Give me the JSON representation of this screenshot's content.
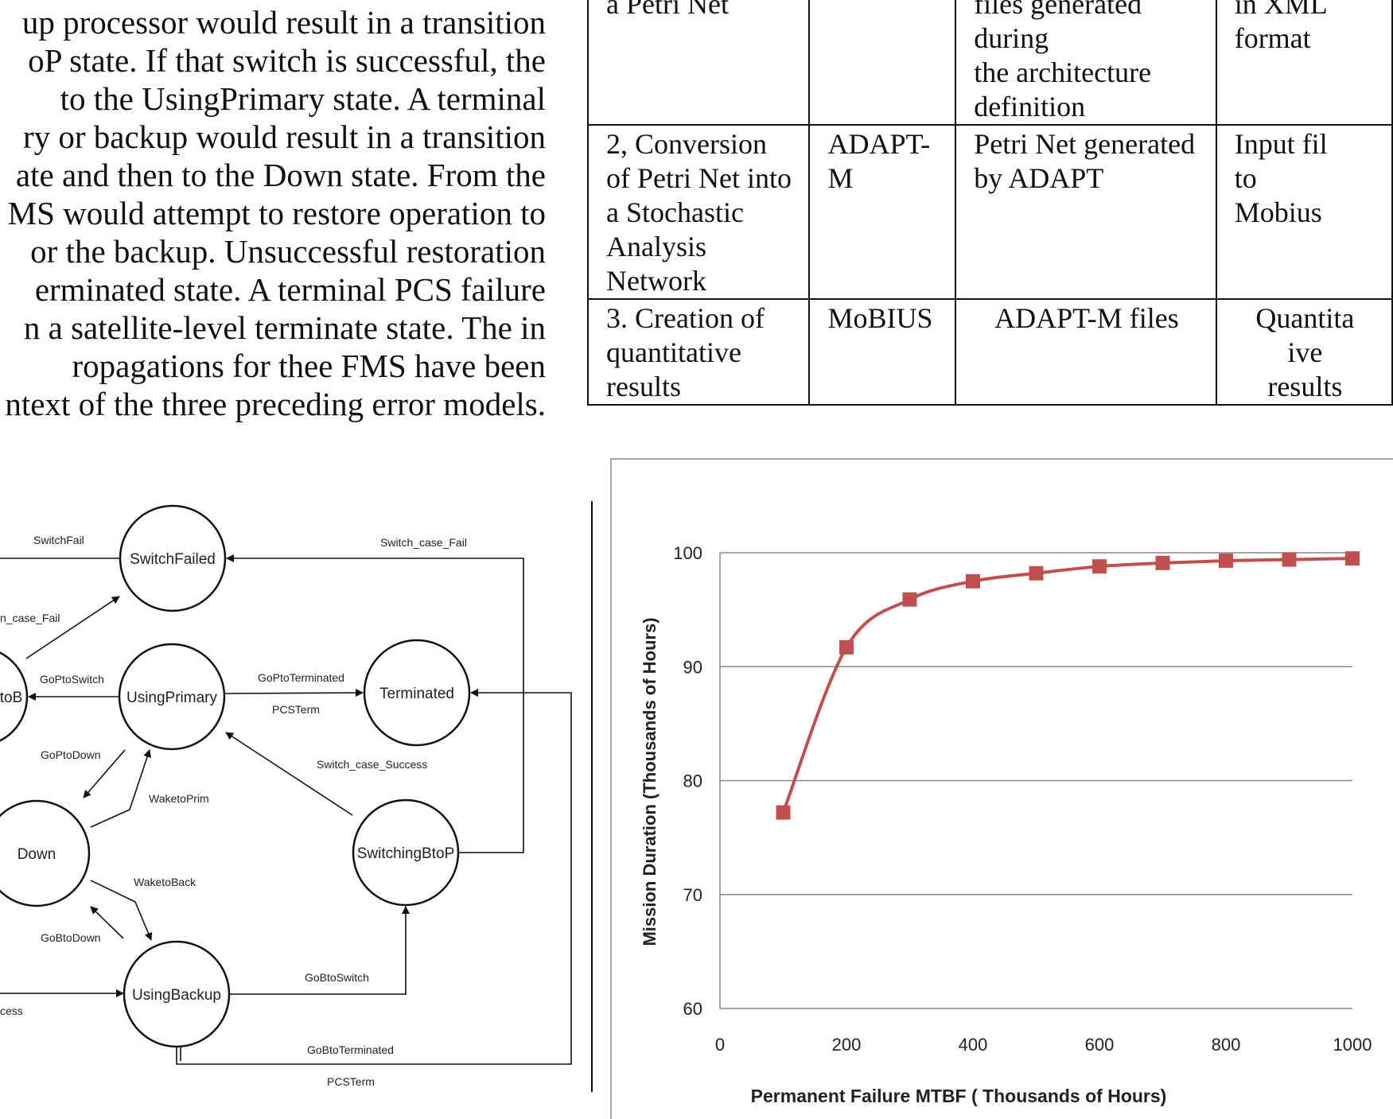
{
  "paragraph": {
    "lines": [
      "up processor would result in a transition",
      "oP state.  If that switch is successful, the",
      " to the UsingPrimary state.   A terminal",
      "ry or backup would result in a transition",
      "ate and then to the Down state. From the",
      "MS would attempt to restore operation to",
      "or the backup.  Unsuccessful restoration",
      "erminated state.  A terminal PCS failure",
      "n a satellite-level terminate state.  The in",
      "ropagations  for  thee  FMS  have  been",
      "ntext of the three preceding error models."
    ]
  },
  "table": {
    "rows": [
      {
        "step": [
          "a Petri Net"
        ],
        "tool": [
          ""
        ],
        "input": [
          "files generated during",
          "the architecture",
          "definition"
        ],
        "output": [
          "in XML",
          "format"
        ]
      },
      {
        "step": [
          "2,  Conversion",
          "of Petri Net into",
          "a Stochastic",
          "Analysis",
          "Network"
        ],
        "tool": [
          "ADAPT-",
          "M"
        ],
        "input": [
          "Petri Net generated",
          "by ADAPT"
        ],
        "output": [
          "Input fil",
          "to",
          "Mobius"
        ]
      },
      {
        "step": [
          "3.  Creation of",
          "quantitative",
          "results"
        ],
        "tool": [
          "MoBIUS"
        ],
        "input": [
          "ADAPT-M files"
        ],
        "output": [
          "Quantita",
          "ive",
          "results"
        ]
      }
    ]
  },
  "diagram": {
    "states": {
      "switch_failed": "SwitchFailed",
      "using_primary": "UsingPrimary",
      "terminated": "Terminated",
      "switching_ptob_partial": "toB",
      "down": "Down",
      "switching_btop": "SwitchingBtoP",
      "using_backup": "UsingBackup"
    },
    "transitions": {
      "switch_fail": "SwitchFail",
      "switch_case_fail_left": "n_case_Fail",
      "switch_case_fail_right": "Switch_case_Fail",
      "go_p_to_switch": "GoPtoSwitch",
      "go_p_to_terminated": "GoPtoTerminated",
      "pcs_term_top": "PCSTerm",
      "go_p_to_down": "GoPtoDown",
      "wake_to_prim": "WaketoPrim",
      "switch_case_success": "Switch_case_Success",
      "wake_to_back": "WaketoBack",
      "go_b_to_down": "GoBtoDown",
      "success_partial": "cess",
      "go_b_to_switch": "GoBtoSwitch",
      "go_b_to_terminated": "GoBtoTerminated",
      "pcs_term_bottom": "PCSTerm"
    }
  },
  "chart_data": {
    "type": "line",
    "title": "",
    "xlabel": "Permanent Failure MTBF ( Thousands of Hours)",
    "ylabel": "Mission Duration (Thousands of  Hours)",
    "x": [
      100,
      200,
      300,
      400,
      500,
      600,
      700,
      800,
      900,
      1000
    ],
    "series": [
      {
        "name": "Mission Duration",
        "color": "#c0504d",
        "marker": "square",
        "values": [
          77.2,
          91.7,
          95.9,
          97.5,
          98.2,
          98.8,
          99.1,
          99.3,
          99.4,
          99.5
        ]
      }
    ],
    "xlim": [
      0,
      1000
    ],
    "ylim": [
      60,
      100
    ],
    "xticks": [
      "0",
      "200",
      "400",
      "600",
      "800",
      "1000"
    ],
    "yticks": [
      "60",
      "70",
      "80",
      "90",
      "100"
    ],
    "grid": "horizontal",
    "legend": "none"
  }
}
